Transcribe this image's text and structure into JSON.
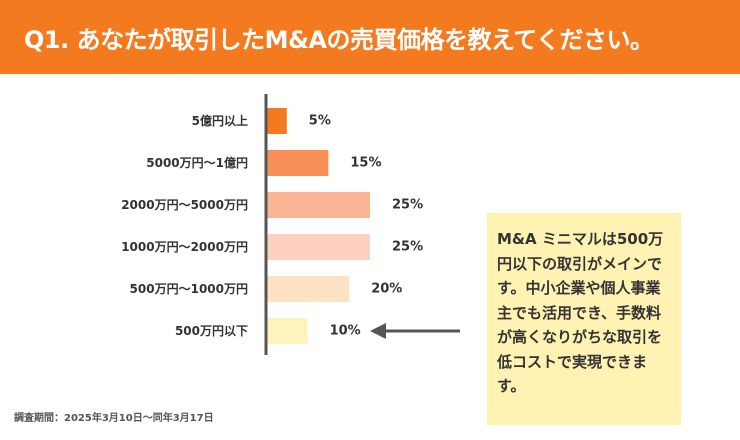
{
  "header": {
    "title": "Q1. あなたが取引したM&Aの売買価格を教えてください。",
    "color": "#f47a20"
  },
  "chart_data": {
    "type": "bar",
    "orientation": "horizontal",
    "categories": [
      "5億円以上",
      "5000万円〜1億円",
      "2000万円〜5000万円",
      "1000万円〜2000万円",
      "500万円〜1000万円",
      "500万円以下"
    ],
    "values": [
      5,
      15,
      25,
      25,
      20,
      10
    ],
    "value_labels": [
      "5%",
      "15%",
      "25%",
      "25%",
      "20%",
      "10%"
    ],
    "colors": [
      "#f47a20",
      "#f89058",
      "#fbb594",
      "#fdd0c0",
      "#fde2c4",
      "#fff3bd"
    ],
    "xlim": [
      0,
      25
    ],
    "grid": false,
    "title": "",
    "xlabel": "",
    "ylabel": ""
  },
  "callout": {
    "text": "M&A ミニマルは500万円以下の取引がメインです。中小企業や個人事業主でも活用でき、手数料が高くなりがちな取引を低コストで実現できます。",
    "background": "#fff2b3",
    "arrow_color": "#555555",
    "arrow_target": "500万円以下"
  },
  "footnote": "調査期間：2025年3月10日〜同年3月17日",
  "axis_color": "#555555"
}
